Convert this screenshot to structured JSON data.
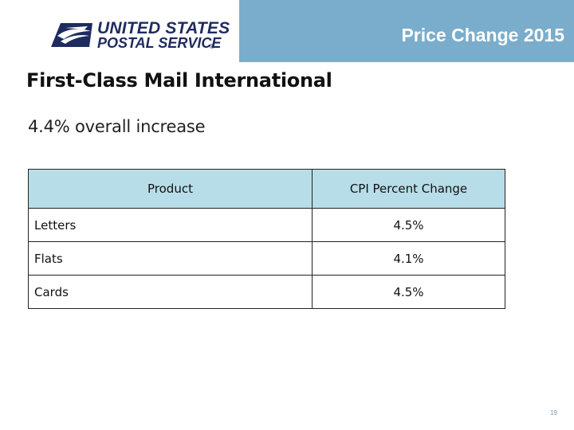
{
  "header": {
    "logo_line1": "UNITED STATES",
    "logo_line2": "POSTAL SERVICE",
    "logo_reg": "®",
    "title": "Price Change 2015",
    "background_color": "#7aadcc",
    "logo_color": "#1e2b5f"
  },
  "slide": {
    "title": "First-Class Mail International",
    "subtitle": "4.4% overall increase",
    "page_number": "19"
  },
  "table": {
    "header_color": "#b7dde8",
    "columns": [
      "Product",
      "CPI Percent Change"
    ],
    "rows": [
      {
        "product": "Letters",
        "change": "4.5%"
      },
      {
        "product": "Flats",
        "change": "4.1%"
      },
      {
        "product": "Cards",
        "change": "4.5%"
      }
    ]
  }
}
